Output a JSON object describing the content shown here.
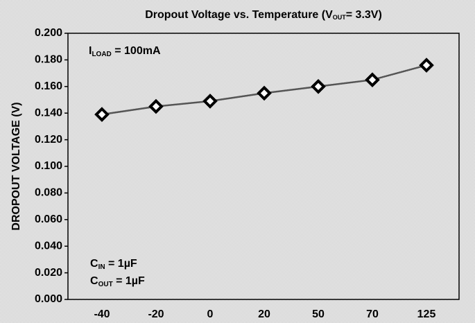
{
  "chart_data": {
    "type": "line",
    "title": {
      "text": "Dropout Voltage vs. Temperature (V",
      "sub": "OUT",
      "tail": "= 3.3V)"
    },
    "y_label": "DROPOUT VOLTAGE (V)",
    "annotations": [
      {
        "text": "I",
        "sub": "LOAD",
        "tail": "  = 100mA"
      },
      {
        "text": "C",
        "sub": "IN",
        "tail": " = 1µF"
      },
      {
        "text": "C",
        "sub": "OUT",
        "tail": " = 1µF"
      }
    ],
    "categories": [
      "-40",
      "-20",
      "0",
      "20",
      "50",
      "70",
      "125"
    ],
    "series": [
      {
        "name": null,
        "color": "#555555",
        "values": [
          0.139,
          0.145,
          0.149,
          0.155,
          0.16,
          0.165,
          0.176
        ]
      }
    ],
    "ylim": [
      0,
      0.2
    ],
    "yticks": [
      {
        "value": 0,
        "label": "0.000"
      },
      {
        "value": 0.02,
        "label": "0.020"
      },
      {
        "value": 0.04,
        "label": "0.040"
      },
      {
        "value": 0.06,
        "label": "0.060"
      },
      {
        "value": 0.08,
        "label": "0.080"
      },
      {
        "value": 0.1,
        "label": "0.100"
      },
      {
        "value": 0.12,
        "label": "0.120"
      },
      {
        "value": 0.14,
        "label": "0.140"
      },
      {
        "value": 0.16,
        "label": "0.160"
      },
      {
        "value": 0.18,
        "label": "0.180"
      },
      {
        "value": 0.2,
        "label": "0.200"
      }
    ],
    "grid": false
  }
}
